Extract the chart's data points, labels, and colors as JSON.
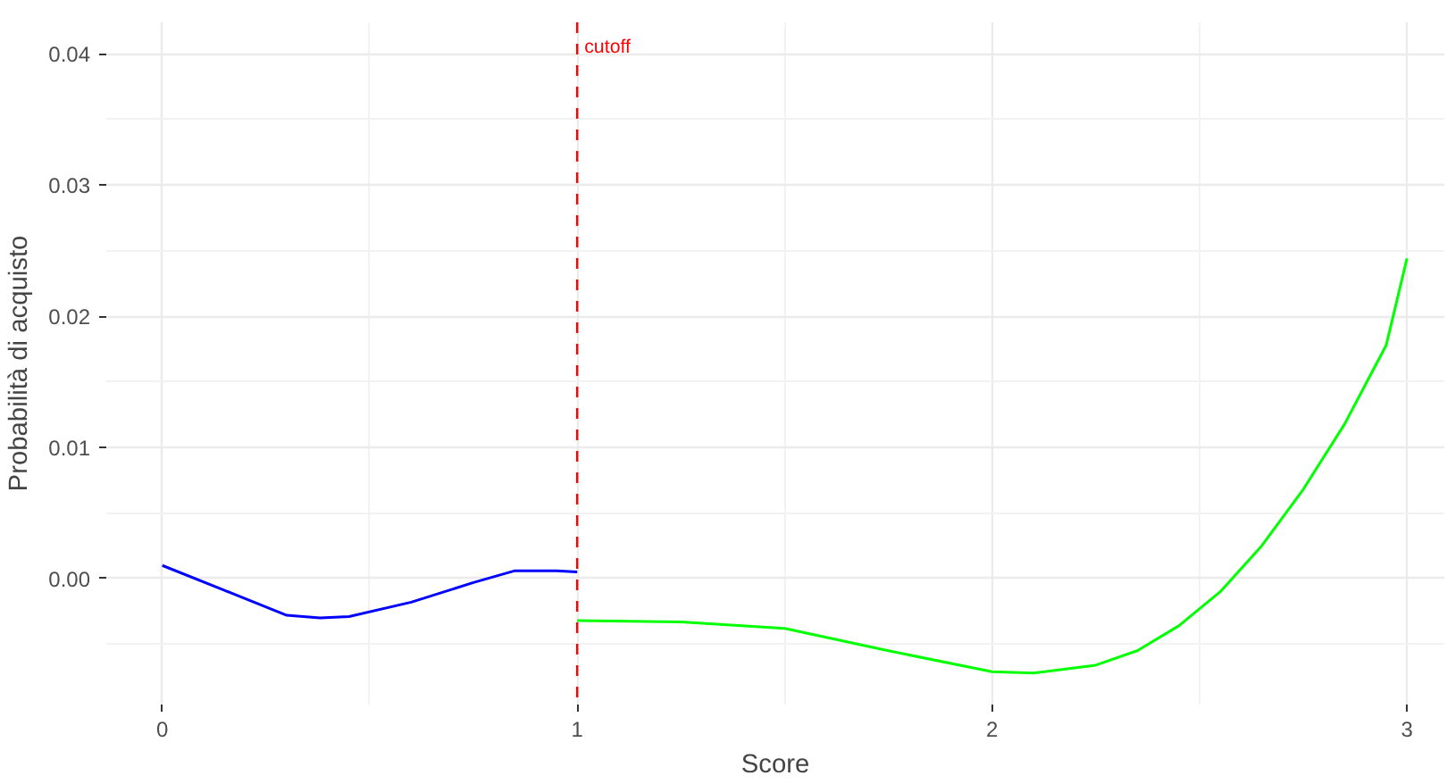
{
  "chart_data": {
    "type": "line",
    "xlabel": "Score",
    "ylabel": "Probabilità di acquisto",
    "xlim": [
      -0.135,
      3.09
    ],
    "ylim": [
      -0.0096,
      0.0424
    ],
    "xticks": [
      0,
      1,
      2,
      3
    ],
    "yticks": [
      {
        "value": 0,
        "label": "0.00"
      },
      {
        "value": 0.01,
        "label": "0.01"
      },
      {
        "value": 0.02,
        "label": "0.02"
      },
      {
        "value": 0.03,
        "label": "0.03"
      },
      {
        "value": 0.04,
        "label": "0.04"
      }
    ],
    "grid": true,
    "marker": "none",
    "line_style": "solid",
    "series": [
      {
        "color": "#0000ff",
        "x": [
          0,
          0.15,
          0.3,
          0.38,
          0.45,
          0.6,
          0.75,
          0.85,
          0.95,
          1.0
        ],
        "values": [
          0.001,
          -0.0009,
          -0.0028,
          -0.003,
          -0.0029,
          -0.0018,
          -0.0003,
          0.0006,
          0.0006,
          0.0005
        ]
      },
      {
        "color": "#00ff00",
        "x": [
          1.0,
          1.25,
          1.5,
          1.75,
          2.0,
          2.1,
          2.25,
          2.35,
          2.45,
          2.55,
          2.65,
          2.75,
          2.85,
          2.95,
          3.0
        ],
        "values": [
          -0.0032,
          -0.0033,
          -0.0038,
          -0.0055,
          -0.0071,
          -0.0072,
          -0.0066,
          -0.0055,
          -0.0036,
          -0.001,
          0.0025,
          0.0068,
          0.0118,
          0.0178,
          0.0244
        ]
      }
    ],
    "ref_lines": [
      {
        "axis": "x",
        "value": 1,
        "label": "cutoff",
        "color": "#ff0000",
        "line_style": "dashed"
      }
    ]
  }
}
